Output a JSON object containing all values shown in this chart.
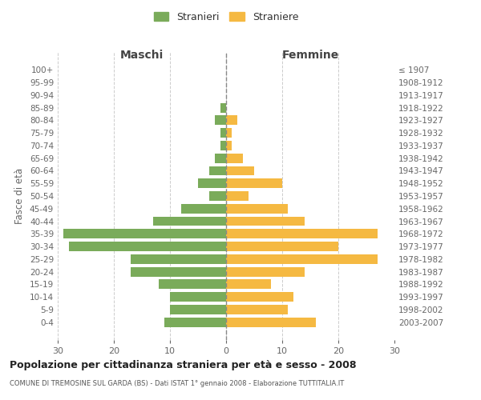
{
  "age_groups": [
    "100+",
    "95-99",
    "90-94",
    "85-89",
    "80-84",
    "75-79",
    "70-74",
    "65-69",
    "60-64",
    "55-59",
    "50-54",
    "45-49",
    "40-44",
    "35-39",
    "30-34",
    "25-29",
    "20-24",
    "15-19",
    "10-14",
    "5-9",
    "0-4"
  ],
  "birth_years": [
    "≤ 1907",
    "1908-1912",
    "1913-1917",
    "1918-1922",
    "1923-1927",
    "1928-1932",
    "1933-1937",
    "1938-1942",
    "1943-1947",
    "1948-1952",
    "1953-1957",
    "1958-1962",
    "1963-1967",
    "1968-1972",
    "1973-1977",
    "1978-1982",
    "1983-1987",
    "1988-1992",
    "1993-1997",
    "1998-2002",
    "2003-2007"
  ],
  "maschi": [
    0,
    0,
    0,
    1,
    2,
    1,
    1,
    2,
    3,
    5,
    3,
    8,
    13,
    29,
    28,
    17,
    17,
    12,
    10,
    10,
    11
  ],
  "femmine": [
    0,
    0,
    0,
    0,
    2,
    1,
    1,
    3,
    5,
    10,
    4,
    11,
    14,
    27,
    20,
    27,
    14,
    8,
    12,
    11,
    16
  ],
  "color_maschi": "#7aab5a",
  "color_femmine": "#f5b942",
  "background_color": "#ffffff",
  "grid_color": "#cccccc",
  "title": "Popolazione per cittadinanza straniera per età e sesso - 2008",
  "subtitle": "COMUNE DI TREMOSINE SUL GARDA (BS) - Dati ISTAT 1° gennaio 2008 - Elaborazione TUTTITALIA.IT",
  "xlabel_left": "Maschi",
  "xlabel_right": "Femmine",
  "ylabel_left": "Fasce di età",
  "legend_maschi": "Stranieri",
  "legend_femmine": "Straniere",
  "xlim": 30,
  "label_color": "#666666",
  "header_color": "#444444"
}
